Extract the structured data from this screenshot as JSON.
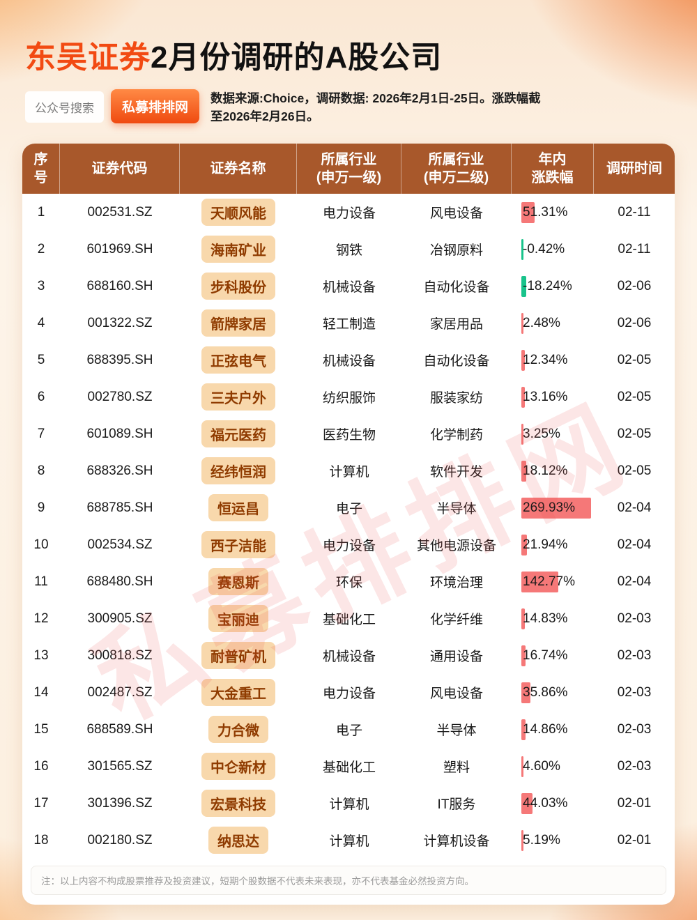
{
  "page": {
    "title_highlight": "东吴证券",
    "title_rest": "2月份调研的A股公司",
    "search_pill": "公众号搜索",
    "brand_pill": "私募排排网",
    "source_note": "数据来源:Choice，调研数据: 2026年2月1日-25日。涨跌幅截至2026年2月26日。",
    "watermark": "私募排排网",
    "disclaimer": "注：以上内容不构成股票推荐及投资建议，短期个股数据不代表未来表现，亦不代表基金必然投资方向。"
  },
  "colors": {
    "accent": "#F24A12",
    "header_bg": "#A8582B",
    "chip_bg": "#F8D8AC",
    "chip_text": "#8F3B00",
    "bar_up": "#F35656",
    "bar_down": "#00BD7E"
  },
  "chart_data": {
    "type": "table",
    "columns": [
      "序\n号",
      "证券代码",
      "证券名称",
      "所属行业\n(申万一级)",
      "所属行业\n(申万二级)",
      "年内\n涨跌幅",
      "调研时间"
    ],
    "rows": [
      {
        "no": "1",
        "code": "002531.SZ",
        "name": "天顺风能",
        "ind1": "电力设备",
        "ind2": "风电设备",
        "change": "51.31%",
        "change_val": 51.31,
        "date": "02-11"
      },
      {
        "no": "2",
        "code": "601969.SH",
        "name": "海南矿业",
        "ind1": "钢铁",
        "ind2": "冶钢原料",
        "change": "-0.42%",
        "change_val": -0.42,
        "date": "02-11"
      },
      {
        "no": "3",
        "code": "688160.SH",
        "name": "步科股份",
        "ind1": "机械设备",
        "ind2": "自动化设备",
        "change": "-18.24%",
        "change_val": -18.24,
        "date": "02-06"
      },
      {
        "no": "4",
        "code": "001322.SZ",
        "name": "箭牌家居",
        "ind1": "轻工制造",
        "ind2": "家居用品",
        "change": "2.48%",
        "change_val": 2.48,
        "date": "02-06"
      },
      {
        "no": "5",
        "code": "688395.SH",
        "name": "正弦电气",
        "ind1": "机械设备",
        "ind2": "自动化设备",
        "change": "12.34%",
        "change_val": 12.34,
        "date": "02-05"
      },
      {
        "no": "6",
        "code": "002780.SZ",
        "name": "三夫户外",
        "ind1": "纺织服饰",
        "ind2": "服装家纺",
        "change": "13.16%",
        "change_val": 13.16,
        "date": "02-05"
      },
      {
        "no": "7",
        "code": "601089.SH",
        "name": "福元医药",
        "ind1": "医药生物",
        "ind2": "化学制药",
        "change": "3.25%",
        "change_val": 3.25,
        "date": "02-05"
      },
      {
        "no": "8",
        "code": "688326.SH",
        "name": "经纬恒润",
        "ind1": "计算机",
        "ind2": "软件开发",
        "change": "18.12%",
        "change_val": 18.12,
        "date": "02-05"
      },
      {
        "no": "9",
        "code": "688785.SH",
        "name": "恒运昌",
        "ind1": "电子",
        "ind2": "半导体",
        "change": "269.93%",
        "change_val": 269.93,
        "date": "02-04"
      },
      {
        "no": "10",
        "code": "002534.SZ",
        "name": "西子洁能",
        "ind1": "电力设备",
        "ind2": "其他电源设备",
        "change": "21.94%",
        "change_val": 21.94,
        "date": "02-04"
      },
      {
        "no": "11",
        "code": "688480.SH",
        "name": "赛恩斯",
        "ind1": "环保",
        "ind2": "环境治理",
        "change": "142.77%",
        "change_val": 142.77,
        "date": "02-04"
      },
      {
        "no": "12",
        "code": "300905.SZ",
        "name": "宝丽迪",
        "ind1": "基础化工",
        "ind2": "化学纤维",
        "change": "14.83%",
        "change_val": 14.83,
        "date": "02-03"
      },
      {
        "no": "13",
        "code": "300818.SZ",
        "name": "耐普矿机",
        "ind1": "机械设备",
        "ind2": "通用设备",
        "change": "16.74%",
        "change_val": 16.74,
        "date": "02-03"
      },
      {
        "no": "14",
        "code": "002487.SZ",
        "name": "大金重工",
        "ind1": "电力设备",
        "ind2": "风电设备",
        "change": "35.86%",
        "change_val": 35.86,
        "date": "02-03"
      },
      {
        "no": "15",
        "code": "688589.SH",
        "name": "力合微",
        "ind1": "电子",
        "ind2": "半导体",
        "change": "14.86%",
        "change_val": 14.86,
        "date": "02-03"
      },
      {
        "no": "16",
        "code": "301565.SZ",
        "name": "中仑新材",
        "ind1": "基础化工",
        "ind2": "塑料",
        "change": "4.60%",
        "change_val": 4.6,
        "date": "02-03"
      },
      {
        "no": "17",
        "code": "301396.SZ",
        "name": "宏景科技",
        "ind1": "计算机",
        "ind2": "IT服务",
        "change": "44.03%",
        "change_val": 44.03,
        "date": "02-01"
      },
      {
        "no": "18",
        "code": "002180.SZ",
        "name": "纳思达",
        "ind1": "计算机",
        "ind2": "计算机设备",
        "change": "5.19%",
        "change_val": 5.19,
        "date": "02-01"
      }
    ]
  }
}
